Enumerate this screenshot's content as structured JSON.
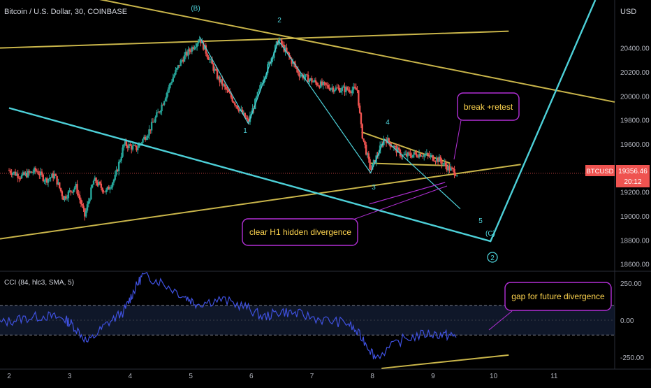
{
  "header": {
    "symbol_title": "Bitcoin / U.S. Dollar, 30, COINBASE",
    "currency": "USD"
  },
  "price_badge": {
    "ticker": "BTCUSD",
    "price": "19356.46",
    "countdown": "20:12",
    "color": "#ef5350"
  },
  "indicator": {
    "title": "CCI (84, hlc3, SMA, 5)",
    "upper_band": 100,
    "lower_band": -100
  },
  "colors": {
    "background": "#000000",
    "up_candle": "#26a69a",
    "down_candle": "#ef5350",
    "trendline": "#c9b54a",
    "wave_line": "#4dd0d8",
    "cci_line": "#3f51e0",
    "callout": "#b22fd6",
    "callout_text": "#ffd54f"
  },
  "annotations": {
    "break_retest": "break +retest",
    "hidden_divergence": "clear H1 hidden divergence",
    "future_divergence": "gap for future divergence"
  },
  "wave_labels": {
    "b": "(B)",
    "w1": "1",
    "w2": "2",
    "w3": "3",
    "w4": "4",
    "w5": "5",
    "c": "(C)",
    "circle2": "2"
  },
  "chart_data": [
    {
      "type": "candlestick",
      "title": "Bitcoin / U.S. Dollar, 30, COINBASE",
      "x_ticks": [
        "2",
        "3",
        "4",
        "5",
        "6",
        "7",
        "8",
        "9",
        "10",
        "11"
      ],
      "x_range": [
        1.85,
        12.0
      ],
      "y_ticks": [
        18600,
        18800,
        19000,
        19200,
        19400,
        19600,
        19800,
        20000,
        20200,
        20400
      ],
      "y_tick_labels": [
        "18600.00",
        "18800.00",
        "19000.00",
        "19200.00",
        "19400.00",
        "19600.00",
        "19800.00",
        "20000.00",
        "20200.00",
        "20400.00"
      ],
      "ylim": [
        18540,
        20800
      ],
      "last_price": 19356.46,
      "price_path": [
        [
          2.0,
          19380
        ],
        [
          2.2,
          19330
        ],
        [
          2.45,
          19380
        ],
        [
          2.6,
          19300
        ],
        [
          2.75,
          19340
        ],
        [
          2.9,
          19150
        ],
        [
          3.1,
          19250
        ],
        [
          3.25,
          19000
        ],
        [
          3.4,
          19300
        ],
        [
          3.6,
          19200
        ],
        [
          3.75,
          19320
        ],
        [
          3.9,
          19600
        ],
        [
          4.1,
          19560
        ],
        [
          4.3,
          19700
        ],
        [
          4.5,
          19900
        ],
        [
          4.7,
          20150
        ],
        [
          4.85,
          20300
        ],
        [
          5.15,
          20480
        ],
        [
          5.45,
          20150
        ],
        [
          5.95,
          19780
        ],
        [
          6.2,
          20150
        ],
        [
          6.45,
          20470
        ],
        [
          6.8,
          20180
        ],
        [
          7.1,
          20100
        ],
        [
          7.4,
          20060
        ],
        [
          7.75,
          20050
        ],
        [
          7.82,
          19700
        ],
        [
          7.97,
          19380
        ],
        [
          8.2,
          19650
        ],
        [
          8.5,
          19500
        ],
        [
          8.8,
          19520
        ],
        [
          9.1,
          19470
        ],
        [
          9.25,
          19400
        ],
        [
          9.4,
          19356
        ]
      ],
      "trendlines": [
        {
          "x": [
            1.85,
            10.25
          ],
          "y": [
            20400,
            20540
          ]
        },
        {
          "x": [
            3.15,
            12.0
          ],
          "y": [
            20840,
            19950
          ]
        },
        {
          "x": [
            1.85,
            10.45
          ],
          "y": [
            18810,
            19430
          ]
        },
        {
          "x": [
            7.82,
            9.28
          ],
          "y": [
            19700,
            19440
          ]
        },
        {
          "x": [
            7.97,
            9.25
          ],
          "y": [
            19440,
            19420
          ]
        }
      ],
      "wave_path": {
        "x": [
          5.15,
          5.95,
          6.45,
          7.97,
          8.2,
          9.45
        ],
        "y": [
          20490,
          19770,
          20460,
          19360,
          19640,
          19060
        ]
      },
      "wave_projection": {
        "x": [
          2.0,
          9.95,
          11.68
        ],
        "y": [
          19900,
          18790,
          20800
        ]
      },
      "divergence_line": {
        "x": [
          7.95,
          9.2
        ],
        "y": [
          19100,
          19280
        ]
      }
    },
    {
      "type": "line",
      "title": "CCI (84, hlc3, SMA, 5)",
      "series": [
        {
          "name": "",
          "x": [
            1.85,
            2.2,
            2.6,
            2.9,
            3.05,
            3.3,
            3.6,
            3.9,
            4.05,
            4.2,
            4.5,
            4.9,
            5.1,
            5.5,
            5.9,
            6.2,
            6.5,
            6.8,
            7.2,
            7.6,
            7.85,
            8.05,
            8.5,
            8.9,
            9.2,
            9.4
          ],
          "y": [
            -20,
            10,
            30,
            10,
            -30,
            -150,
            -30,
            60,
            190,
            300,
            260,
            160,
            110,
            140,
            90,
            20,
            60,
            40,
            0,
            -20,
            -130,
            -250,
            -130,
            -90,
            -100,
            -110
          ]
        }
      ],
      "y_ticks": [
        250,
        0,
        -250
      ],
      "y_tick_labels": [
        "250.00",
        "0.00",
        "-250.00"
      ],
      "ylim": [
        -330,
        330
      ],
      "bands": [
        100,
        -100
      ],
      "trendline": {
        "x": [
          8.15,
          10.25
        ],
        "y": [
          -325,
          -235
        ]
      }
    }
  ]
}
